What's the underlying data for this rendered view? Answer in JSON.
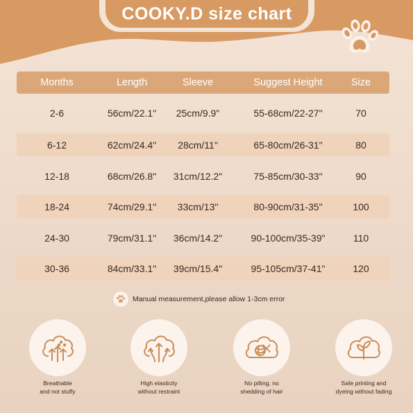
{
  "title": "COOKY.D size chart",
  "colors": {
    "accent": "#d89a63",
    "header_row": "#dba778",
    "shaded_row": "#efd3bb",
    "text": "#3a2a20",
    "background": "#f0ddcc"
  },
  "table": {
    "headers": [
      "Months",
      "Length",
      "Sleeve",
      "Suggest Height",
      "Size"
    ],
    "rows": [
      [
        "2-6",
        "56cm/22.1\"",
        "25cm/9.9\"",
        "55-68cm/22-27\"",
        "70"
      ],
      [
        "6-12",
        "62cm/24.4\"",
        "28cm/11\"",
        "65-80cm/26-31\"",
        "80"
      ],
      [
        "12-18",
        "68cm/26.8\"",
        "31cm/12.2\"",
        "75-85cm/30-33\"",
        "90"
      ],
      [
        "18-24",
        "74cm/29.1\"",
        "33cm/13\"",
        "80-90cm/31-35\"",
        "100"
      ],
      [
        "24-30",
        "79cm/31.1\"",
        "36cm/14.2\"",
        "90-100cm/35-39\"",
        "110"
      ],
      [
        "30-36",
        "84cm/33.1\"",
        "39cm/15.4\"",
        "95-105cm/37-41\"",
        "120"
      ]
    ]
  },
  "note": "Manual measurement,please allow 1-3cm error",
  "features": [
    {
      "icon": "breathable-cloud-icon",
      "line1": "Breathable",
      "line2": "and not stuffy"
    },
    {
      "icon": "elasticity-cloud-icon",
      "line1": "High elasticity",
      "line2": "without restraint"
    },
    {
      "icon": "no-pilling-yarn-icon",
      "line1": "No pilling, no",
      "line2": "shedding of hair"
    },
    {
      "icon": "safe-printing-cotton-icon",
      "line1": "Safe printing and",
      "line2": "dyeing without fading"
    }
  ]
}
